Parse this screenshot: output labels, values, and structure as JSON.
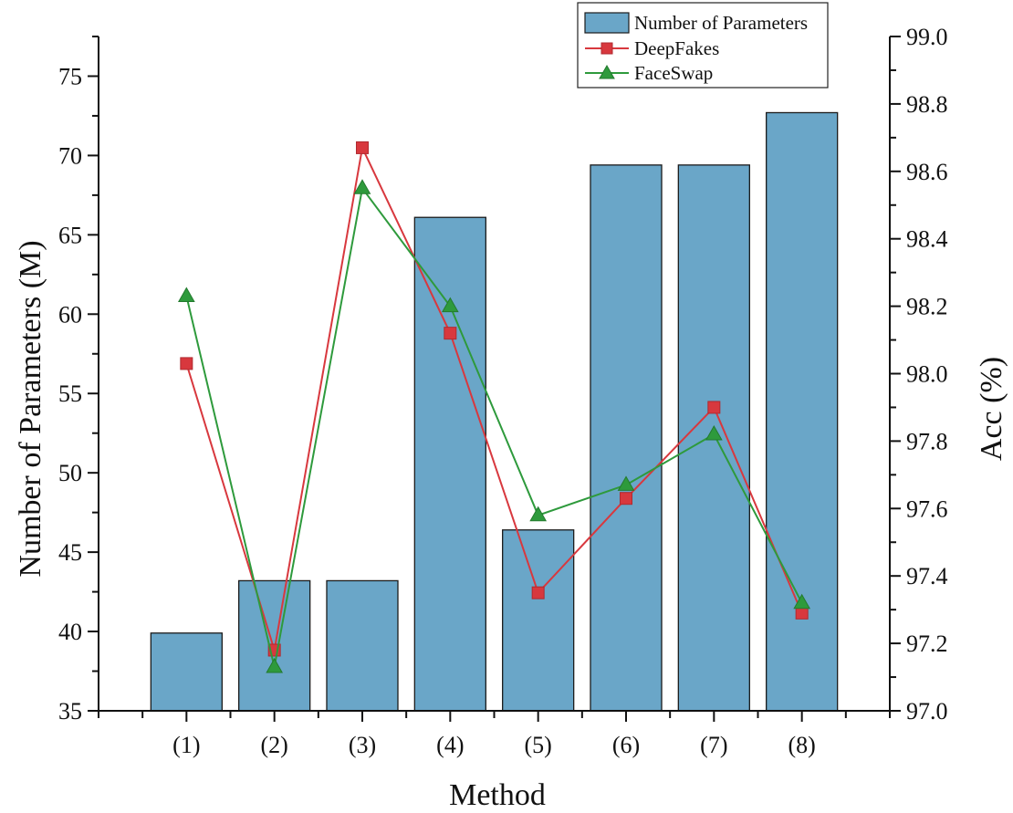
{
  "chart_data": {
    "type": "bar",
    "title": "",
    "xlabel": "Method",
    "ylabel_left": "Number of Parameters (M)",
    "ylabel_right": "Acc (%)",
    "categories": [
      "(1)",
      "(2)",
      "(3)",
      "(4)",
      "(5)",
      "(6)",
      "(7)",
      "(8)"
    ],
    "ylim_left": [
      35,
      77.5
    ],
    "ylim_right": [
      97.0,
      99.0
    ],
    "yticks_left": [
      "35",
      "40",
      "45",
      "50",
      "55",
      "60",
      "65",
      "70",
      "75"
    ],
    "yticks_right": [
      "97.0",
      "97.2",
      "97.4",
      "97.6",
      "97.8",
      "98.0",
      "98.2",
      "98.4",
      "98.6",
      "98.8",
      "99.0"
    ],
    "grid": false,
    "legend_position": "top-right",
    "series": [
      {
        "name": "Number of Parameters",
        "kind": "bar",
        "axis": "left",
        "color": "#6AA6C8",
        "values": [
          39.9,
          43.2,
          43.2,
          66.1,
          46.4,
          69.4,
          69.4,
          72.7
        ]
      },
      {
        "name": "DeepFakes",
        "kind": "line",
        "marker": "square",
        "axis": "right",
        "color": "#D8383E",
        "values": [
          98.03,
          97.18,
          98.67,
          98.12,
          97.35,
          97.63,
          97.9,
          97.29
        ]
      },
      {
        "name": "FaceSwap",
        "kind": "line",
        "marker": "triangle",
        "axis": "right",
        "color": "#2E9A3C",
        "values": [
          98.23,
          97.13,
          98.55,
          98.2,
          97.58,
          97.67,
          97.82,
          97.32
        ]
      }
    ]
  }
}
